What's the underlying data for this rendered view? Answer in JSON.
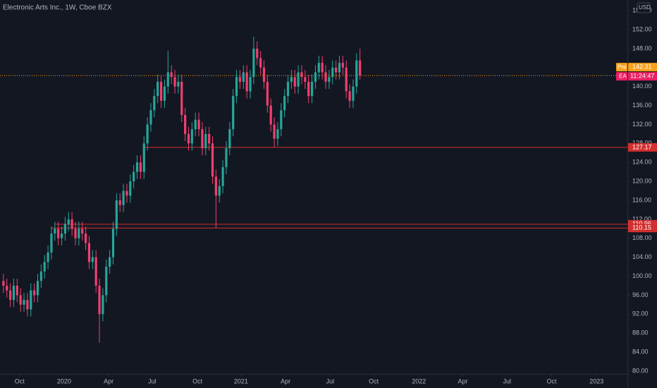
{
  "chart_data": {
    "type": "candlestick",
    "title": "Electronic Arts Inc., 1W, Cboe BZX",
    "currency": "USD",
    "open": [
      99,
      98,
      97,
      95,
      98,
      96,
      94,
      95,
      93,
      97,
      96,
      99,
      101,
      103,
      105,
      109,
      110,
      108,
      109,
      111,
      112,
      110,
      108,
      110,
      109,
      107,
      103,
      104,
      98,
      92,
      96,
      102,
      104,
      110,
      116,
      115,
      118,
      117,
      120,
      122,
      124,
      122,
      128,
      132,
      135,
      138,
      141,
      137,
      140,
      143,
      142,
      140,
      141,
      134,
      130,
      128,
      131,
      133,
      131,
      127,
      130,
      128,
      121,
      117,
      119,
      123,
      127,
      131,
      138,
      142,
      141,
      143,
      139,
      142,
      148,
      146,
      144,
      141,
      136,
      132,
      129,
      131,
      135,
      138,
      141,
      142,
      140,
      143,
      142,
      141,
      138,
      141,
      143,
      145,
      143,
      141,
      142,
      144,
      143,
      145,
      144,
      139,
      137,
      140,
      145.5
    ],
    "high": [
      100.5,
      99.5,
      98.5,
      99.5,
      99.5,
      97.5,
      96.5,
      96.5,
      98.5,
      98.5,
      100.5,
      102.5,
      104.5,
      106.5,
      110.5,
      111.5,
      111.5,
      110.5,
      112.5,
      113.5,
      113.5,
      111.5,
      111.5,
      111.5,
      110.5,
      108.5,
      105.5,
      105.5,
      99.5,
      97.5,
      103.5,
      105.5,
      111.5,
      117.5,
      117.5,
      119.5,
      119.5,
      121.5,
      123.5,
      125.5,
      125.5,
      129.5,
      133.5,
      136.5,
      139.5,
      142.5,
      142.5,
      141.5,
      147.5,
      144.5,
      143.5,
      142.5,
      142.5,
      135.5,
      131.5,
      132.5,
      134.5,
      134.5,
      132.5,
      131.5,
      131.5,
      129.5,
      122.5,
      120.5,
      124.5,
      128.5,
      132.5,
      139.5,
      143.5,
      143.5,
      144.5,
      144.5,
      143.5,
      150.5,
      149.5,
      147.5,
      145.5,
      142.5,
      137.5,
      133.5,
      132.5,
      136.5,
      139.5,
      142.5,
      143.5,
      143.5,
      144.5,
      144.5,
      143.5,
      142.5,
      142.5,
      144.5,
      146.5,
      146.5,
      144.5,
      143.5,
      145.5,
      145.5,
      146.5,
      146.5,
      145.5,
      140.5,
      141.5,
      147,
      148
    ],
    "low": [
      96.5,
      95.5,
      93.5,
      93.5,
      94.5,
      92.5,
      92.5,
      91.5,
      91.5,
      94.5,
      94.5,
      97.5,
      99.5,
      101.5,
      103.5,
      107.5,
      106.5,
      106.5,
      107.5,
      109.5,
      108.5,
      106.5,
      106.5,
      107.5,
      105.5,
      101.5,
      101.5,
      96.5,
      86,
      90.5,
      94.5,
      100.5,
      102.5,
      108.5,
      113.5,
      113.5,
      115.5,
      115.5,
      118.5,
      120.5,
      120.5,
      120.5,
      126.5,
      130.5,
      133.5,
      136.5,
      135.5,
      135.5,
      138.5,
      140.5,
      138.5,
      138.5,
      132.5,
      128.5,
      126.5,
      126.5,
      129.5,
      129.5,
      125.5,
      125.5,
      126.5,
      119.5,
      110.15,
      115.5,
      117.5,
      121.5,
      125.5,
      129.5,
      136.5,
      139.5,
      139.5,
      137.5,
      137.5,
      140.5,
      144.5,
      142.5,
      139.5,
      134.5,
      130.5,
      127.17,
      127.5,
      129.5,
      133.5,
      136.5,
      139.5,
      138.5,
      138.5,
      140.5,
      139.5,
      136.5,
      136.5,
      139.5,
      141.5,
      141.5,
      139.5,
      139.5,
      140.5,
      141.5,
      141.5,
      142.5,
      137.5,
      135.5,
      135.5,
      138.5,
      141.5
    ],
    "close": [
      98,
      97,
      95,
      98,
      96,
      94,
      95,
      93,
      97,
      96,
      99,
      101,
      103,
      105,
      109,
      110,
      108,
      109,
      111,
      112,
      110,
      108,
      110,
      109,
      107,
      103,
      104,
      98,
      92,
      96,
      102,
      104,
      110,
      116,
      115,
      118,
      117,
      120,
      122,
      124,
      122,
      128,
      132,
      135,
      138,
      141,
      137,
      140,
      143,
      142,
      140,
      141,
      134,
      130,
      128,
      131,
      133,
      131,
      127,
      130,
      128,
      121,
      117,
      119,
      123,
      127,
      131,
      138,
      142,
      141,
      143,
      139,
      142,
      148,
      146,
      144,
      141,
      136,
      132,
      129,
      131,
      135,
      138,
      141,
      142,
      140,
      143,
      142,
      141,
      138,
      141,
      143,
      145,
      143,
      141,
      142,
      144,
      143,
      145,
      144,
      139,
      137,
      140,
      145.5,
      142.31
    ],
    "up_color": "#26a69a",
    "down_color": "#f23f6f",
    "ylim": [
      79.4,
      158.25
    ],
    "yticks": [
      {
        "value": 80,
        "label": "80.00"
      },
      {
        "value": 84,
        "label": "84.00"
      },
      {
        "value": 88,
        "label": "88.00"
      },
      {
        "value": 92,
        "label": "92.00"
      },
      {
        "value": 96,
        "label": "96.00"
      },
      {
        "value": 100,
        "label": "100.00"
      },
      {
        "value": 104,
        "label": "104.00"
      },
      {
        "value": 108,
        "label": "108.00"
      },
      {
        "value": 112,
        "label": "112.00"
      },
      {
        "value": 116,
        "label": "116.00"
      },
      {
        "value": 120,
        "label": "120.00"
      },
      {
        "value": 124,
        "label": "124.00"
      },
      {
        "value": 128,
        "label": "128.00"
      },
      {
        "value": 132,
        "label": "132.00"
      },
      {
        "value": 136,
        "label": "136.00"
      },
      {
        "value": 140,
        "label": "140.00"
      },
      {
        "value": 144,
        "label": "144.00"
      },
      {
        "value": 148,
        "label": "148.00"
      },
      {
        "value": 152,
        "label": "152.00"
      },
      {
        "value": 156,
        "label": "156.00"
      }
    ],
    "xlim": [
      -1,
      182
    ],
    "xticks": [
      {
        "value": 4.7,
        "label": "Oct"
      },
      {
        "value": 17.7,
        "label": "2020"
      },
      {
        "value": 30.7,
        "label": "Apr"
      },
      {
        "value": 43.4,
        "label": "Jul"
      },
      {
        "value": 56.6,
        "label": "Oct"
      },
      {
        "value": 69.3,
        "label": "2021"
      },
      {
        "value": 82.3,
        "label": "Apr"
      },
      {
        "value": 95.3,
        "label": "Jul"
      },
      {
        "value": 108,
        "label": "Oct"
      },
      {
        "value": 121.2,
        "label": "2022"
      },
      {
        "value": 134,
        "label": "Apr"
      },
      {
        "value": 146.9,
        "label": "Jul"
      },
      {
        "value": 159.9,
        "label": "Oct"
      },
      {
        "value": 173,
        "label": "2023"
      }
    ],
    "levels": [
      127.17,
      110.96,
      110.15
    ],
    "level_color": "#d32f2f",
    "last": {
      "session": "Pre",
      "value": 142.31,
      "color": "#f7a21b"
    },
    "symbol": {
      "name": "EA",
      "countdown": "11:24:47",
      "color": "#e91e63"
    }
  }
}
